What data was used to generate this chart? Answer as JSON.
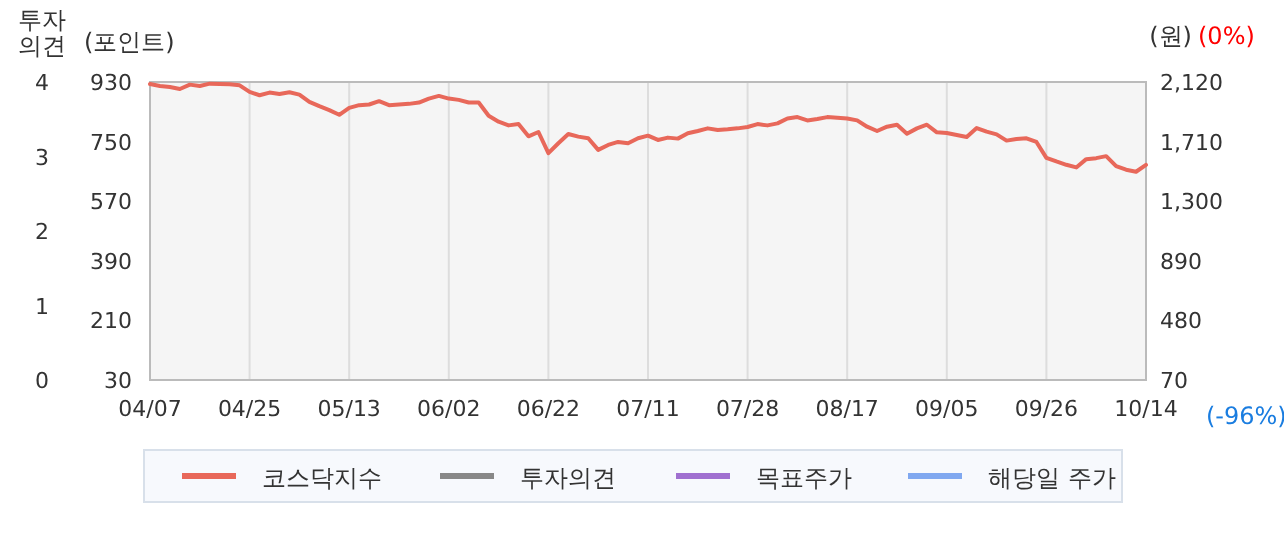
{
  "chart_data": {
    "type": "line",
    "ylabel": "(포인트)",
    "y2label": "(원)",
    "y3label": "투자의견",
    "categories": [
      "04/07",
      null,
      null,
      null,
      null,
      null,
      null,
      null,
      null,
      null,
      "04/25",
      null,
      null,
      null,
      null,
      null,
      null,
      null,
      null,
      null,
      "05/13",
      null,
      null,
      null,
      null,
      null,
      null,
      null,
      null,
      null,
      "06/02",
      null,
      null,
      null,
      null,
      null,
      null,
      null,
      null,
      null,
      "06/22",
      null,
      null,
      null,
      null,
      null,
      null,
      null,
      null,
      null,
      "07/11",
      null,
      null,
      null,
      null,
      null,
      null,
      null,
      null,
      null,
      "07/28",
      null,
      null,
      null,
      null,
      null,
      null,
      null,
      null,
      null,
      "08/17",
      null,
      null,
      null,
      null,
      null,
      null,
      null,
      null,
      null,
      "09/05",
      null,
      null,
      null,
      null,
      null,
      null,
      null,
      null,
      null,
      "09/26",
      null,
      null,
      null,
      null,
      null,
      null,
      null,
      null,
      null,
      "10/14"
    ],
    "ylim": [
      30,
      930
    ],
    "yticks": [
      30,
      210,
      390,
      570,
      750,
      930
    ],
    "y2lim": [
      70,
      2120
    ],
    "y2ticks": [
      70,
      480,
      890,
      {
        "value": 1300,
        "label": "1,300"
      },
      {
        "value": 1710,
        "label": "1,710"
      },
      {
        "value": 2120,
        "label": "2,120"
      }
    ],
    "y3lim": [
      0,
      4
    ],
    "y3ticks": [
      0,
      1,
      2,
      3,
      4
    ],
    "grid": "x",
    "legend": "bottom",
    "marker": "none",
    "line_style": "solid",
    "annotations": [
      "(0%)",
      "(-96%)"
    ],
    "series": [
      {
        "name": "코스닥지수",
        "color": "#e8685a",
        "values": [
          924,
          918,
          915,
          909,
          922,
          918,
          925,
          924,
          923,
          920,
          900,
          890,
          898,
          894,
          899,
          892,
          870,
          857,
          845,
          831,
          852,
          860,
          862,
          872,
          860,
          862,
          864,
          868,
          880,
          888,
          880,
          876,
          868,
          868,
          828,
          810,
          799,
          803,
          766,
          779,
          715,
          745,
          773,
          765,
          760,
          725,
          740,
          749,
          745,
          760,
          768,
          755,
          762,
          759,
          775,
          782,
          790,
          785,
          787,
          790,
          794,
          803,
          799,
          805,
          820,
          824,
          814,
          818,
          824,
          822,
          820,
          814,
          795,
          782,
          795,
          801,
          774,
          790,
          801,
          778,
          776,
          770,
          764,
          791,
          780,
          772,
          753,
          758,
          760,
          749,
          701,
          690,
          680,
          672,
          697,
          700,
          706,
          676,
          665,
          659,
          680
        ]
      },
      {
        "name": "투자의견",
        "color": "#888888",
        "values": [
          null,
          null,
          null,
          null,
          null,
          null,
          null,
          null,
          null,
          null,
          null,
          null,
          null,
          null,
          null,
          null,
          null,
          null,
          null,
          null,
          null,
          null,
          null,
          null,
          null,
          null,
          null,
          null,
          null,
          null,
          null,
          null,
          null,
          null,
          null,
          null,
          null,
          null,
          null,
          null,
          null,
          null,
          null,
          null,
          null,
          null,
          null,
          null,
          null,
          null,
          null,
          null,
          null,
          null,
          null,
          null,
          null,
          null,
          null,
          null,
          null,
          null,
          null,
          null,
          null,
          null,
          null,
          null,
          null,
          null,
          null,
          null,
          null,
          null,
          null,
          null,
          null,
          null,
          null,
          null,
          null,
          null,
          null,
          null,
          null,
          null,
          null,
          null,
          null,
          null,
          null,
          null,
          null,
          null,
          null,
          null,
          null,
          null,
          null,
          null,
          null
        ]
      },
      {
        "name": "목표주가",
        "color": "#a070d0",
        "values": [
          null,
          null,
          null,
          null,
          null,
          null,
          null,
          null,
          null,
          null,
          null,
          null,
          null,
          null,
          null,
          null,
          null,
          null,
          null,
          null,
          null,
          null,
          null,
          null,
          null,
          null,
          null,
          null,
          null,
          null,
          null,
          null,
          null,
          null,
          null,
          null,
          null,
          null,
          null,
          null,
          null,
          null,
          null,
          null,
          null,
          null,
          null,
          null,
          null,
          null,
          null,
          null,
          null,
          null,
          null,
          null,
          null,
          null,
          null,
          null,
          null,
          null,
          null,
          null,
          null,
          null,
          null,
          null,
          null,
          null,
          null,
          null,
          null,
          null,
          null,
          null,
          null,
          null,
          null,
          null,
          null,
          null,
          null,
          null,
          null,
          null,
          null,
          null,
          null,
          null,
          null,
          null,
          null,
          null,
          null,
          null,
          null,
          null,
          null,
          null,
          null
        ]
      },
      {
        "name": "해당일 주가",
        "color": "#80a8f0",
        "values": [
          null,
          null,
          null,
          null,
          null,
          null,
          null,
          null,
          null,
          null,
          null,
          null,
          null,
          null,
          null,
          null,
          null,
          null,
          null,
          null,
          null,
          null,
          null,
          null,
          null,
          null,
          null,
          null,
          null,
          null,
          null,
          null,
          null,
          null,
          null,
          null,
          null,
          null,
          null,
          null,
          null,
          null,
          null,
          null,
          null,
          null,
          null,
          null,
          null,
          null,
          null,
          null,
          null,
          null,
          null,
          null,
          null,
          null,
          null,
          null,
          null,
          null,
          null,
          null,
          null,
          null,
          null,
          null,
          null,
          null,
          null,
          null,
          null,
          null,
          null,
          null,
          null,
          null,
          null,
          null,
          null,
          null,
          null,
          null,
          null,
          null,
          null,
          null,
          null,
          null,
          null,
          null,
          null,
          null,
          null,
          null,
          null,
          null,
          null,
          null,
          null
        ]
      }
    ]
  }
}
